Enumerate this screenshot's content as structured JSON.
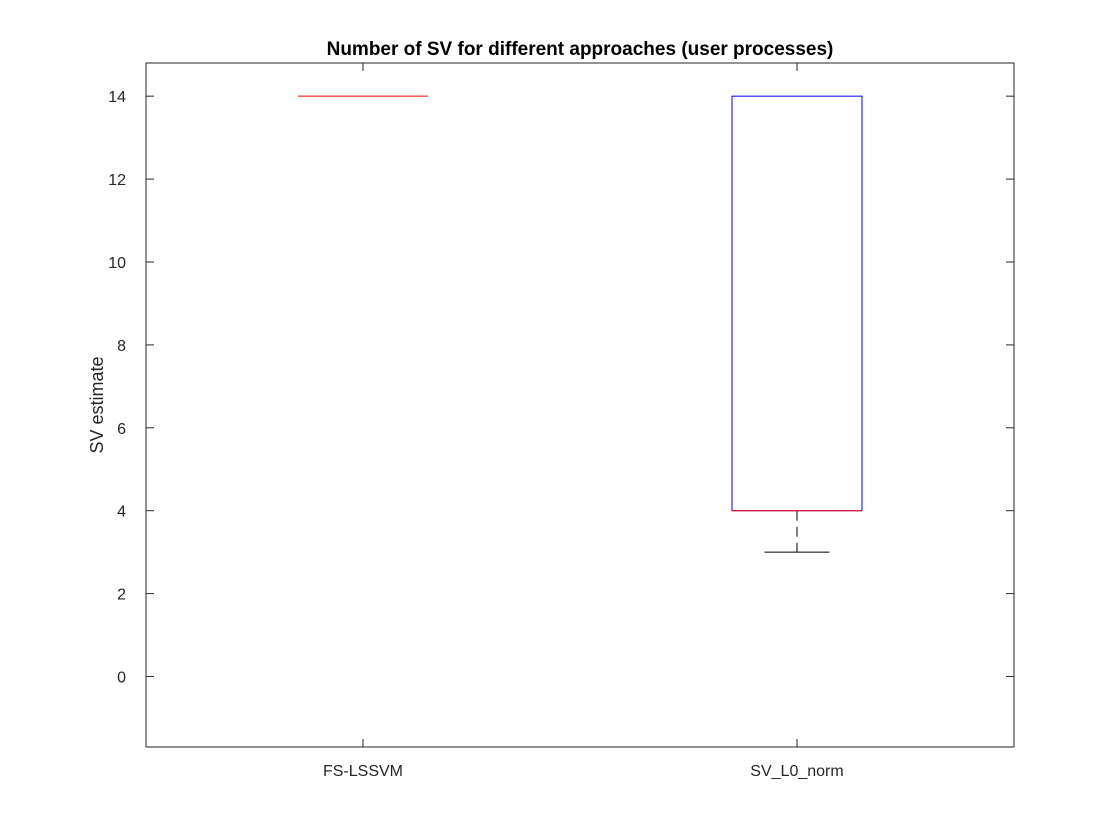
{
  "chart_data": {
    "type": "box",
    "title": "Number of SV for different approaches (user processes)",
    "xlabel": "",
    "ylabel": "SV estimate",
    "ylim": [
      -1.7,
      14.8
    ],
    "yticks": [
      0,
      2,
      4,
      6,
      8,
      10,
      12,
      14
    ],
    "ytick_labels": [
      "0",
      "2",
      "4",
      "6",
      "8",
      "10",
      "12",
      "14"
    ],
    "categories": [
      "FS-LSSVM",
      "SV_L0_norm"
    ],
    "boxes": [
      {
        "category": "FS-LSSVM",
        "q1": 14,
        "median": 14,
        "q3": 14,
        "whisker_low": 14,
        "whisker_high": 14
      },
      {
        "category": "SV_L0_norm",
        "q1": 4,
        "median": 4,
        "q3": 14,
        "whisker_low": 3,
        "whisker_high": 14
      }
    ],
    "grid": false,
    "colors": {
      "box": "#0000ff",
      "median": "#ff0000",
      "whisker": "#000000",
      "axes": "#262626"
    }
  }
}
